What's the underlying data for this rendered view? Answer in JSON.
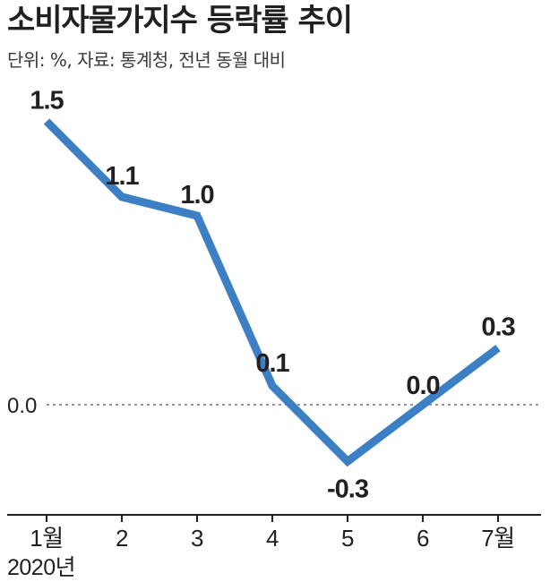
{
  "chart_data": {
    "type": "line",
    "title": "소비자물가지수 등락률 추이",
    "subtitle": "단위: %, 자료: 통계청, 전년 동월 대비",
    "categories": [
      "1월",
      "2",
      "3",
      "4",
      "5",
      "6",
      "7월"
    ],
    "series": [
      {
        "values": [
          1.5,
          1.1,
          1.0,
          0.1,
          -0.3,
          0.0,
          0.3
        ],
        "labels": [
          "1.5",
          "1.1",
          "1.0",
          "0.1",
          "-0.3",
          "0.0",
          "0.3"
        ],
        "color": "#3d7fc4"
      }
    ],
    "reference_line": {
      "value": 0.0,
      "label": "0.0",
      "style": "dotted"
    },
    "x_sublabel": "2020년",
    "ylim": [
      -0.6,
      1.75
    ],
    "grid": false,
    "legend": "none"
  }
}
